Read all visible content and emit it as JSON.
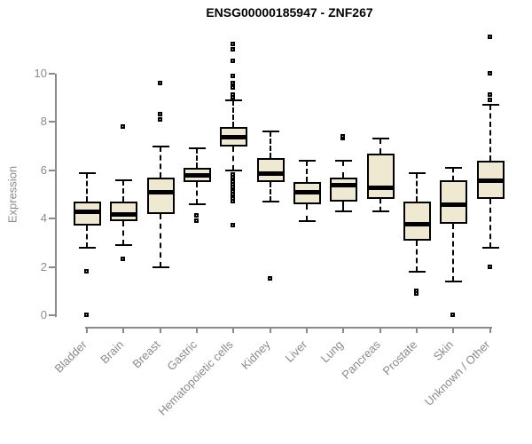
{
  "colors": {
    "box_fill": "#EFE9D2",
    "box_border": "#000000",
    "median": "#000000",
    "axis": "#8A8A8A",
    "title": "#000000",
    "background": "#FFFFFF"
  },
  "chart_data": {
    "type": "box",
    "title": "ENSG00000185947 - ZNF267",
    "xlabel": "",
    "ylabel": "Expression",
    "yticks": [
      0,
      2,
      4,
      6,
      8,
      10
    ],
    "ylim": [
      0,
      11.6
    ],
    "grid": false,
    "legend": null,
    "categories": [
      "Bladder",
      "Brain",
      "Breast",
      "Gastric",
      "Hematopoietic cells",
      "Kidney",
      "Liver",
      "Lung",
      "Pancreas",
      "Prostate",
      "Skin",
      "Unknown / Other"
    ],
    "boxes": [
      {
        "category": "Bladder",
        "whisker_low": 2.8,
        "q1": 3.7,
        "median": 4.3,
        "q3": 4.7,
        "whisker_high": 5.9,
        "outliers": [
          1.8,
          0.0
        ]
      },
      {
        "category": "Brain",
        "whisker_low": 2.9,
        "q1": 3.9,
        "median": 4.2,
        "q3": 4.7,
        "whisker_high": 5.6,
        "outliers": [
          2.3,
          7.8
        ]
      },
      {
        "category": "Breast",
        "whisker_low": 2.0,
        "q1": 4.2,
        "median": 5.1,
        "q3": 5.7,
        "whisker_high": 7.0,
        "outliers": [
          8.1,
          8.3,
          9.6
        ]
      },
      {
        "category": "Gastric",
        "whisker_low": 4.6,
        "q1": 5.5,
        "median": 5.8,
        "q3": 6.1,
        "whisker_high": 6.9,
        "outliers": [
          4.1,
          3.9
        ]
      },
      {
        "category": "Hematopoietic cells",
        "whisker_low": 6.0,
        "q1": 7.0,
        "median": 7.4,
        "q3": 7.8,
        "whisker_high": 8.9,
        "outliers": [
          11.2,
          11.0,
          10.5,
          9.9,
          9.6,
          9.5,
          9.4,
          9.1,
          9.0,
          5.8,
          5.7,
          5.6,
          5.5,
          5.4,
          5.3,
          5.2,
          5.1,
          5.0,
          4.9,
          4.8,
          4.7,
          3.7
        ]
      },
      {
        "category": "Kidney",
        "whisker_low": 4.7,
        "q1": 5.5,
        "median": 5.9,
        "q3": 6.5,
        "whisker_high": 7.6,
        "outliers": [
          1.5
        ]
      },
      {
        "category": "Liver",
        "whisker_low": 3.9,
        "q1": 4.6,
        "median": 5.1,
        "q3": 5.5,
        "whisker_high": 6.4,
        "outliers": []
      },
      {
        "category": "Lung",
        "whisker_low": 4.3,
        "q1": 4.7,
        "median": 5.4,
        "q3": 5.7,
        "whisker_high": 6.4,
        "outliers": [
          7.3,
          7.4
        ]
      },
      {
        "category": "Pancreas",
        "whisker_low": 4.3,
        "q1": 4.8,
        "median": 5.3,
        "q3": 6.7,
        "whisker_high": 7.3,
        "outliers": []
      },
      {
        "category": "Prostate",
        "whisker_low": 1.8,
        "q1": 3.1,
        "median": 3.8,
        "q3": 4.7,
        "whisker_high": 5.9,
        "outliers": [
          1.0,
          0.9
        ]
      },
      {
        "category": "Skin",
        "whisker_low": 1.4,
        "q1": 3.8,
        "median": 4.6,
        "q3": 5.6,
        "whisker_high": 6.1,
        "outliers": [
          0.0
        ]
      },
      {
        "category": "Unknown / Other",
        "whisker_low": 2.8,
        "q1": 4.8,
        "median": 5.6,
        "q3": 6.4,
        "whisker_high": 8.7,
        "outliers": [
          11.5,
          10.0,
          9.1,
          8.9,
          2.0
        ]
      }
    ]
  }
}
